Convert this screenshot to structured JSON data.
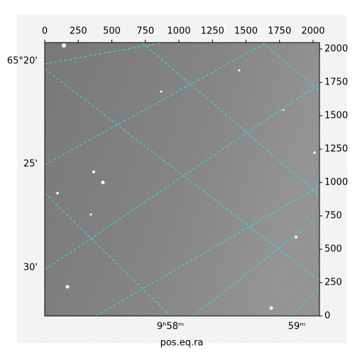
{
  "chart_data": {
    "type": "image",
    "xlabel": "pos.eq.ra",
    "xlim": [
      0,
      2048
    ],
    "xticks": [
      0,
      250,
      500,
      750,
      1000,
      1250,
      1500,
      1750,
      2000
    ],
    "ylim": [
      0,
      2048
    ],
    "yticks": [
      0,
      250,
      500,
      750,
      1000,
      1250,
      1500,
      1750,
      2000
    ],
    "dec_labels": [
      "65°20'",
      "25'",
      "30'"
    ],
    "ra_labels": [
      "9ʰ58ᵐ",
      "59ᵐ"
    ],
    "grid_color": "#2ee6e6"
  }
}
